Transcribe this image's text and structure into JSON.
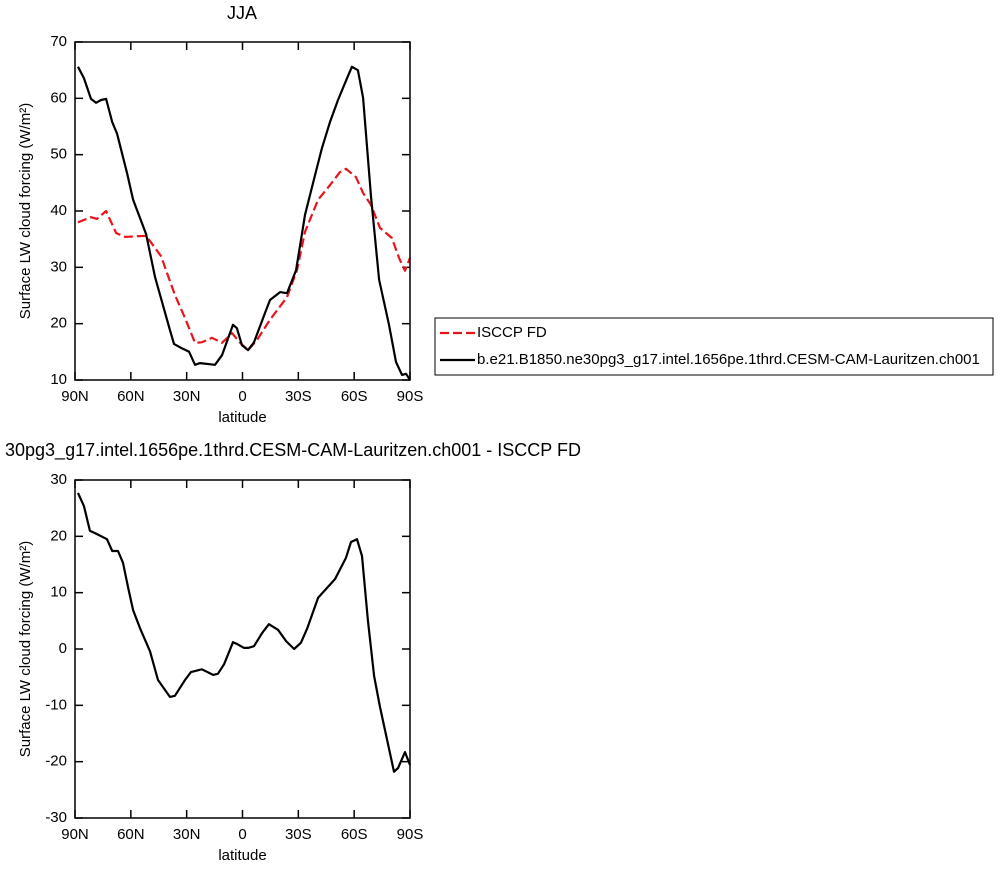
{
  "chart_data": [
    {
      "type": "line",
      "title": "JJA",
      "xlabel": "latitude",
      "ylabel": "Surface LW cloud forcing (W/m²)",
      "xlim": [
        90,
        -90
      ],
      "xticks": [
        {
          "value": 90,
          "label": "90N"
        },
        {
          "value": 60,
          "label": "60N"
        },
        {
          "value": 30,
          "label": "30N"
        },
        0,
        {
          "value": -30,
          "label": "30S"
        },
        {
          "value": -60,
          "label": "60S"
        },
        {
          "value": -90,
          "label": "90S"
        }
      ],
      "ylim": [
        10,
        70
      ],
      "yticks": [
        10,
        20,
        30,
        40,
        50,
        60,
        70
      ],
      "legend": "right",
      "series": [
        {
          "name": "ISCCP FD",
          "color": "#e8141b",
          "dashed": true,
          "x": [
            88.4,
            81.4,
            78.2,
            73.3,
            67.9,
            63.1,
            51.8,
            43.8,
            36.3,
            30.9,
            25.5,
            21.8,
            16.4,
            11,
            5.6,
            1.3,
            -3,
            -7.8,
            -14.8,
            -23.9,
            -29.3,
            -33.6,
            -40.6,
            -47,
            -52.4,
            -55.6,
            -61,
            -64.8,
            -69,
            -73.9,
            -80.3,
            -84.1,
            -87.3,
            -90
          ],
          "values": [
            38,
            38.9,
            38.6,
            40,
            36.1,
            35.4,
            35.6,
            32,
            25.1,
            21,
            16.6,
            16.7,
            17.5,
            16.6,
            18.3,
            16.6,
            15.3,
            17.1,
            20.7,
            24.7,
            29.5,
            36.3,
            42,
            44.6,
            46.9,
            47.5,
            46,
            43.2,
            41.1,
            37,
            35.2,
            31.7,
            29.4,
            31.7
          ]
        },
        {
          "name": "b.e21.B1850.ne30pg3_g17.intel.1656pe.1thrd.CESM-CAM-Lauritzen.ch001",
          "color": "#000000",
          "dashed": false,
          "x": [
            88.4,
            85.2,
            81.4,
            78.7,
            76,
            73.3,
            70,
            67.4,
            62,
            58.8,
            51.8,
            47,
            39,
            36.8,
            33,
            28.7,
            25.5,
            22.8,
            14.8,
            11,
            5.1,
            3,
            0.3,
            -3,
            -6.2,
            -12.1,
            -14.8,
            -20.2,
            -23.9,
            -28.8,
            -33.6,
            -39,
            -42.7,
            -47,
            -51.3,
            -56.2,
            -58.8,
            -62,
            -64.8,
            -69,
            -73.4,
            -78.7,
            -82.5,
            -85.7,
            -87.9,
            -90
          ],
          "values": [
            65.6,
            63.6,
            59.9,
            59.2,
            59.7,
            59.9,
            55.8,
            53.7,
            46.7,
            42,
            35.9,
            28.3,
            18.9,
            16.4,
            15.7,
            15,
            12.7,
            13,
            12.7,
            14.4,
            19.8,
            19.2,
            16.2,
            15.3,
            16.7,
            21.9,
            24.2,
            25.6,
            25.4,
            29.5,
            39.3,
            46.4,
            51.2,
            55.8,
            59.7,
            63.6,
            65.6,
            65,
            60.1,
            42.8,
            27.8,
            19.8,
            13.2,
            10.9,
            11.1,
            10
          ]
        }
      ]
    },
    {
      "type": "line",
      "title": "30pg3_g17.intel.1656pe.1thrd.CESM-CAM-Lauritzen.ch001 - ISCCP FD",
      "xlabel": "latitude",
      "ylabel": "Surface LW cloud forcing (W/m²)",
      "xlim": [
        90,
        -90
      ],
      "xticks": [
        {
          "value": 90,
          "label": "90N"
        },
        {
          "value": 60,
          "label": "60N"
        },
        {
          "value": 30,
          "label": "30N"
        },
        0,
        {
          "value": -30,
          "label": "30S"
        },
        {
          "value": -60,
          "label": "60S"
        },
        {
          "value": -90,
          "label": "90S"
        }
      ],
      "ylim": [
        -30,
        30
      ],
      "yticks": [
        -30,
        -20,
        -10,
        0,
        10,
        20,
        30
      ],
      "series": [
        {
          "color": "#000000",
          "dashed": false,
          "x": [
            88.4,
            85.2,
            82,
            78.2,
            72.8,
            70,
            66.9,
            64.2,
            61.5,
            58.8,
            55.1,
            49.7,
            45.4,
            39,
            36.3,
            30.9,
            27.7,
            21.8,
            15.8,
            13.2,
            9.9,
            5.1,
            3,
            -0.8,
            -3,
            -6.2,
            -10.5,
            -14.2,
            -19.1,
            -23.4,
            -27.7,
            -31.4,
            -34.7,
            -40.6,
            -49.7,
            -55.6,
            -58.3,
            -61.5,
            -64.2,
            -67.4,
            -70.7,
            -73.9,
            -81.4,
            -83.6,
            -87.3,
            -90
          ],
          "values": [
            27.7,
            25.4,
            21,
            20.4,
            19.5,
            17.4,
            17.4,
            15.3,
            11,
            6.9,
            3.7,
            -0.4,
            -5.5,
            -8.5,
            -8.3,
            -5.5,
            -4.1,
            -3.6,
            -4.6,
            -4.4,
            -2.7,
            1.2,
            0.9,
            0.2,
            0.2,
            0.5,
            2.8,
            4.4,
            3.4,
            1.4,
            0,
            1.1,
            3.6,
            9.1,
            12.4,
            16.2,
            19,
            19.5,
            16.5,
            5.1,
            -4.8,
            -10.3,
            -21.8,
            -21.1,
            -18.3,
            -20.6
          ]
        }
      ]
    }
  ]
}
